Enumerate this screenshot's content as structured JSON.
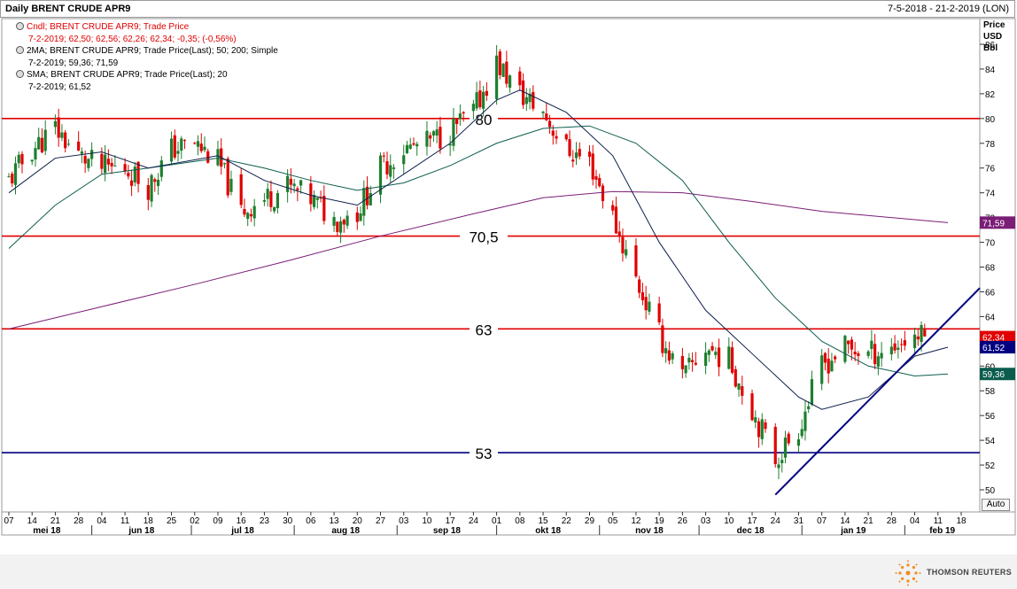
{
  "header": {
    "title": "Daily BRENT CRUDE APR9",
    "date_range": "7-5-2018 - 21-2-2019 (LON)"
  },
  "legend": [
    {
      "line1": "Cndl; BRENT CRUDE APR9; Trade Price",
      "line2": "7-2-2019; 62,50; 62,56; 62,26; 62,34; -0,35; (-0,56%)",
      "color": "#e00000"
    },
    {
      "line1": "2MA; BRENT CRUDE APR9; Trade Price(Last);  50; 200; Simple",
      "line2": "7-2-2019; 59,36; 71,59",
      "color": "#000000"
    },
    {
      "line1": "SMA; BRENT CRUDE APR9; Trade Price(Last);  20",
      "line2": "7-2-2019; 61,52",
      "color": "#000000"
    }
  ],
  "axis_header": [
    "Price",
    "USD",
    "Bbl"
  ],
  "auto_label": "Auto",
  "footer_brand": "THOMSON REUTERS",
  "colors": {
    "up_candle": "#1e7f2e",
    "down_candle": "#e00000",
    "hline": "#e00000",
    "support": "#000080",
    "ma50": "#0c5c4e",
    "ma200": "#7a1d77",
    "sma20": "#0d1e4a",
    "grid": "#d0d0d0"
  },
  "chart_data": {
    "type": "candlestick",
    "ylim": [
      49,
      88
    ],
    "yticks": [
      50,
      52,
      54,
      56,
      58,
      60,
      62,
      64,
      66,
      68,
      70,
      72,
      74,
      76,
      78,
      80,
      82,
      84,
      86
    ],
    "x_start": "2018-05-07",
    "x_end": "2019-02-21",
    "xtick_labels": [
      "07",
      "14",
      "21",
      "28",
      "04",
      "11",
      "18",
      "25",
      "02",
      "09",
      "16",
      "23",
      "30",
      "06",
      "13",
      "20",
      "27",
      "03",
      "10",
      "17",
      "24",
      "01",
      "08",
      "15",
      "22",
      "29",
      "05",
      "12",
      "19",
      "26",
      "03",
      "10",
      "17",
      "24",
      "31",
      "07",
      "14",
      "21",
      "28",
      "04",
      "11",
      "18"
    ],
    "month_labels": [
      "mei 18",
      "jun 18",
      "jul 18",
      "aug 18",
      "sep 18",
      "okt 18",
      "nov 18",
      "dec 18",
      "jan 19",
      "feb 19"
    ],
    "horizontal_lines": [
      {
        "label": "80",
        "value": 80
      },
      {
        "label": "70,5",
        "value": 70.5
      },
      {
        "label": "63",
        "value": 63
      },
      {
        "label": "53",
        "value": 53
      }
    ],
    "trendline": {
      "from": {
        "date": "2018-12-24",
        "value": 49.6
      },
      "to": {
        "date": "2019-02-21",
        "value": 66.3
      }
    },
    "last_price_tags": [
      {
        "value": 71.59,
        "label": "71,59",
        "series": "200MA"
      },
      {
        "value": 62.34,
        "label": "62,34",
        "series": "Close"
      },
      {
        "value": 61.52,
        "label": "61,52",
        "series": "20SMA"
      },
      {
        "value": 59.36,
        "label": "59,36",
        "series": "50MA"
      }
    ],
    "close_path": [
      [
        "2018-05-07",
        75.0
      ],
      [
        "2018-05-14",
        77.5
      ],
      [
        "2018-05-21",
        79.2
      ],
      [
        "2018-05-28",
        77.0
      ],
      [
        "2018-06-04",
        76.0
      ],
      [
        "2018-06-11",
        76.0
      ],
      [
        "2018-06-18",
        74.5
      ],
      [
        "2018-06-25",
        77.5
      ],
      [
        "2018-07-02",
        78.0
      ],
      [
        "2018-07-09",
        76.5
      ],
      [
        "2018-07-16",
        72.5
      ],
      [
        "2018-07-23",
        73.5
      ],
      [
        "2018-07-30",
        74.5
      ],
      [
        "2018-08-06",
        73.5
      ],
      [
        "2018-08-13",
        71.8
      ],
      [
        "2018-08-20",
        72.5
      ],
      [
        "2018-08-27",
        76.0
      ],
      [
        "2018-09-03",
        77.5
      ],
      [
        "2018-09-10",
        78.0
      ],
      [
        "2018-09-17",
        79.0
      ],
      [
        "2018-09-24",
        80.5
      ],
      [
        "2018-10-01",
        84.5
      ],
      [
        "2018-10-08",
        82.0
      ],
      [
        "2018-10-15",
        80.5
      ],
      [
        "2018-10-22",
        77.5
      ],
      [
        "2018-10-29",
        76.5
      ],
      [
        "2018-11-05",
        72.0
      ],
      [
        "2018-11-12",
        67.0
      ],
      [
        "2018-11-19",
        62.5
      ],
      [
        "2018-11-26",
        59.0
      ],
      [
        "2018-12-03",
        61.5
      ],
      [
        "2018-12-10",
        60.5
      ],
      [
        "2018-12-17",
        56.5
      ],
      [
        "2018-12-24",
        52.5
      ],
      [
        "2018-12-31",
        55.0
      ],
      [
        "2019-01-07",
        60.0
      ],
      [
        "2019-01-14",
        61.5
      ],
      [
        "2019-01-21",
        61.0
      ],
      [
        "2019-01-28",
        61.5
      ],
      [
        "2019-02-04",
        62.5
      ],
      [
        "2019-02-07",
        62.34
      ]
    ],
    "ma50_path": [
      [
        "2018-05-07",
        69.5
      ],
      [
        "2018-05-21",
        73.0
      ],
      [
        "2018-06-04",
        75.5
      ],
      [
        "2018-06-18",
        76.0
      ],
      [
        "2018-07-09",
        76.8
      ],
      [
        "2018-07-23",
        76.0
      ],
      [
        "2018-08-06",
        75.0
      ],
      [
        "2018-08-20",
        74.2
      ],
      [
        "2018-09-03",
        74.8
      ],
      [
        "2018-09-17",
        76.2
      ],
      [
        "2018-10-01",
        78.0
      ],
      [
        "2018-10-15",
        79.2
      ],
      [
        "2018-10-29",
        79.4
      ],
      [
        "2018-11-12",
        78.0
      ],
      [
        "2018-11-26",
        75.0
      ],
      [
        "2018-12-10",
        70.0
      ],
      [
        "2018-12-24",
        65.5
      ],
      [
        "2019-01-07",
        62.0
      ],
      [
        "2019-01-21",
        60.0
      ],
      [
        "2019-02-04",
        59.2
      ],
      [
        "2019-02-14",
        59.36
      ]
    ],
    "ma200_path": [
      [
        "2018-05-07",
        63.0
      ],
      [
        "2018-06-04",
        64.8
      ],
      [
        "2018-07-02",
        66.6
      ],
      [
        "2018-07-30",
        68.5
      ],
      [
        "2018-08-27",
        70.5
      ],
      [
        "2018-09-24",
        72.3
      ],
      [
        "2018-10-15",
        73.6
      ],
      [
        "2018-11-05",
        74.1
      ],
      [
        "2018-11-26",
        74.0
      ],
      [
        "2018-12-17",
        73.3
      ],
      [
        "2019-01-07",
        72.5
      ],
      [
        "2019-02-14",
        71.59
      ]
    ],
    "sma20_path": [
      [
        "2018-05-07",
        74.0
      ],
      [
        "2018-05-21",
        76.8
      ],
      [
        "2018-06-04",
        77.3
      ],
      [
        "2018-06-18",
        76.0
      ],
      [
        "2018-07-09",
        77.0
      ],
      [
        "2018-07-23",
        75.0
      ],
      [
        "2018-08-06",
        73.8
      ],
      [
        "2018-08-20",
        73.0
      ],
      [
        "2018-09-03",
        75.5
      ],
      [
        "2018-09-17",
        78.0
      ],
      [
        "2018-10-01",
        81.5
      ],
      [
        "2018-10-08",
        82.3
      ],
      [
        "2018-10-22",
        80.5
      ],
      [
        "2018-11-05",
        77.0
      ],
      [
        "2018-11-19",
        70.0
      ],
      [
        "2018-12-03",
        64.5
      ],
      [
        "2018-12-17",
        61.0
      ],
      [
        "2018-12-31",
        57.5
      ],
      [
        "2019-01-07",
        56.5
      ],
      [
        "2019-01-21",
        57.5
      ],
      [
        "2019-02-04",
        60.8
      ],
      [
        "2019-02-14",
        61.52
      ]
    ]
  }
}
